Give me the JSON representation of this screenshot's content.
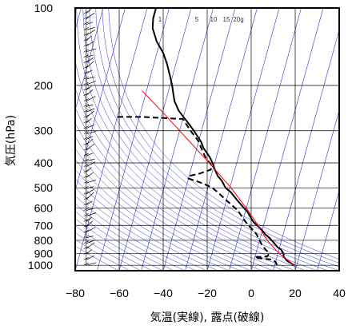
{
  "chart_data": {
    "type": "line",
    "chart_kind": "skew-T sounding",
    "xlabel": "気温(実線), 露点(破線)",
    "ylabel": "気圧(hPa)",
    "xlim": [
      -80,
      40
    ],
    "ylim": [
      1050,
      100
    ],
    "y_scale": "log",
    "x_ticks": [
      "−80",
      "−60",
      "−40",
      "−20",
      "0",
      "20",
      "40"
    ],
    "y_ticks": [
      "100",
      "200",
      "300",
      "400",
      "500",
      "600",
      "700",
      "800",
      "900",
      "1000"
    ],
    "mixing_ratio_labels": [
      "1",
      "5",
      "10",
      "15",
      "20g"
    ],
    "grid": true,
    "colors": {
      "temperature": "#000000",
      "dewpoint": "#000000",
      "parcel": "#ff0000",
      "background_lines": "#3333cc",
      "grid": "#000000"
    },
    "series": [
      {
        "style": "solid",
        "points": [
          {
            "p": 1000,
            "t": 19
          },
          {
            "p": 960,
            "t": 15
          },
          {
            "p": 925,
            "t": 13
          },
          {
            "p": 900,
            "t": 12.5
          },
          {
            "p": 870,
            "t": 11
          },
          {
            "p": 850,
            "t": 9
          },
          {
            "p": 820,
            "t": 7
          },
          {
            "p": 800,
            "t": 5.5
          },
          {
            "p": 780,
            "t": 4
          },
          {
            "p": 760,
            "t": 2
          },
          {
            "p": 740,
            "t": 0.5
          },
          {
            "p": 720,
            "t": -1
          },
          {
            "p": 700,
            "t": -3
          },
          {
            "p": 680,
            "t": -5
          },
          {
            "p": 650,
            "t": -7
          },
          {
            "p": 620,
            "t": -9
          },
          {
            "p": 600,
            "t": -11
          },
          {
            "p": 570,
            "t": -14
          },
          {
            "p": 550,
            "t": -16
          },
          {
            "p": 520,
            "t": -19
          },
          {
            "p": 500,
            "t": -22
          },
          {
            "p": 470,
            "t": -24.5
          },
          {
            "p": 450,
            "t": -27
          },
          {
            "p": 420,
            "t": -29.5
          },
          {
            "p": 400,
            "t": -31
          },
          {
            "p": 380,
            "t": -33
          },
          {
            "p": 350,
            "t": -37
          },
          {
            "p": 330,
            "t": -39
          },
          {
            "p": 300,
            "t": -43.5
          },
          {
            "p": 280,
            "t": -47
          },
          {
            "p": 260,
            "t": -51
          },
          {
            "p": 250,
            "t": -53
          },
          {
            "p": 230,
            "t": -56
          },
          {
            "p": 215,
            "t": -57.5
          },
          {
            "p": 200,
            "t": -59
          },
          {
            "p": 185,
            "t": -61
          },
          {
            "p": 165,
            "t": -64
          },
          {
            "p": 150,
            "t": -67
          },
          {
            "p": 135,
            "t": -71.5
          },
          {
            "p": 120,
            "t": -75
          },
          {
            "p": 110,
            "t": -76
          },
          {
            "p": 100,
            "t": -76
          }
        ]
      },
      {
        "style": "dashed",
        "points": [
          {
            "p": 1000,
            "t": 11
          },
          {
            "p": 970,
            "t": 10
          },
          {
            "p": 950,
            "t": 8
          },
          {
            "p": 935,
            "t": 0
          },
          {
            "p": 930,
            "t": 0.5
          },
          {
            "p": 925,
            "t": 5.5
          },
          {
            "p": 900,
            "t": 6
          },
          {
            "p": 870,
            "t": 4
          },
          {
            "p": 840,
            "t": 2
          },
          {
            "p": 800,
            "t": 0
          },
          {
            "p": 760,
            "t": -2
          },
          {
            "p": 720,
            "t": -5
          },
          {
            "p": 700,
            "t": -7
          },
          {
            "p": 660,
            "t": -10
          },
          {
            "p": 620,
            "t": -13
          },
          {
            "p": 600,
            "t": -15
          },
          {
            "p": 560,
            "t": -20
          },
          {
            "p": 520,
            "t": -25
          },
          {
            "p": 500,
            "t": -28
          },
          {
            "p": 480,
            "t": -33
          },
          {
            "p": 460,
            "t": -40
          },
          {
            "p": 450,
            "t": -40
          },
          {
            "p": 440,
            "t": -35.5
          },
          {
            "p": 425,
            "t": -31
          },
          {
            "p": 410,
            "t": -31
          },
          {
            "p": 380,
            "t": -35
          },
          {
            "p": 350,
            "t": -38
          },
          {
            "p": 330,
            "t": -40
          },
          {
            "p": 300,
            "t": -45
          },
          {
            "p": 270,
            "t": -50
          },
          {
            "p": 265,
            "t": -69
          },
          {
            "p": 265,
            "t": -80
          }
        ]
      },
      {
        "style": "parcel",
        "points": [
          {
            "p": 1000,
            "t": 19
          },
          {
            "p": 900,
            "t": 10.5
          },
          {
            "p": 800,
            "t": 3.5
          },
          {
            "p": 700,
            "t": -2.5
          },
          {
            "p": 600,
            "t": -10
          },
          {
            "p": 500,
            "t": -19.5
          },
          {
            "p": 400,
            "t": -32.5
          },
          {
            "p": 300,
            "t": -50
          },
          {
            "p": 250,
            "t": -61
          },
          {
            "p": 210,
            "t": -72
          }
        ]
      }
    ],
    "wind_barbs": {
      "x": -75,
      "count": 48,
      "p_top": 100,
      "p_bottom": 1000
    }
  }
}
